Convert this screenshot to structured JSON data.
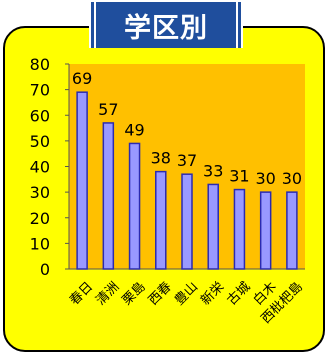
{
  "title": "学区別",
  "colors": {
    "panel": "#ffff00",
    "plot_area": "#ffc000",
    "bar_fill": "#9999ff",
    "bar_stroke": "#2b2bb0",
    "title_bg": "#1f4e9d"
  },
  "chart_data": {
    "type": "bar",
    "categories": [
      "春日",
      "清洲",
      "栗島",
      "西春",
      "豊山",
      "新栄",
      "古城",
      "白木",
      "西枇杷島"
    ],
    "values": [
      69,
      57,
      49,
      38,
      37,
      33,
      31,
      30,
      30
    ],
    "ylim": [
      0,
      80
    ],
    "yticks": [
      0,
      10,
      20,
      30,
      40,
      50,
      60,
      70,
      80
    ],
    "xlabel": "",
    "ylabel": "",
    "grid": false,
    "data_labels": true
  }
}
